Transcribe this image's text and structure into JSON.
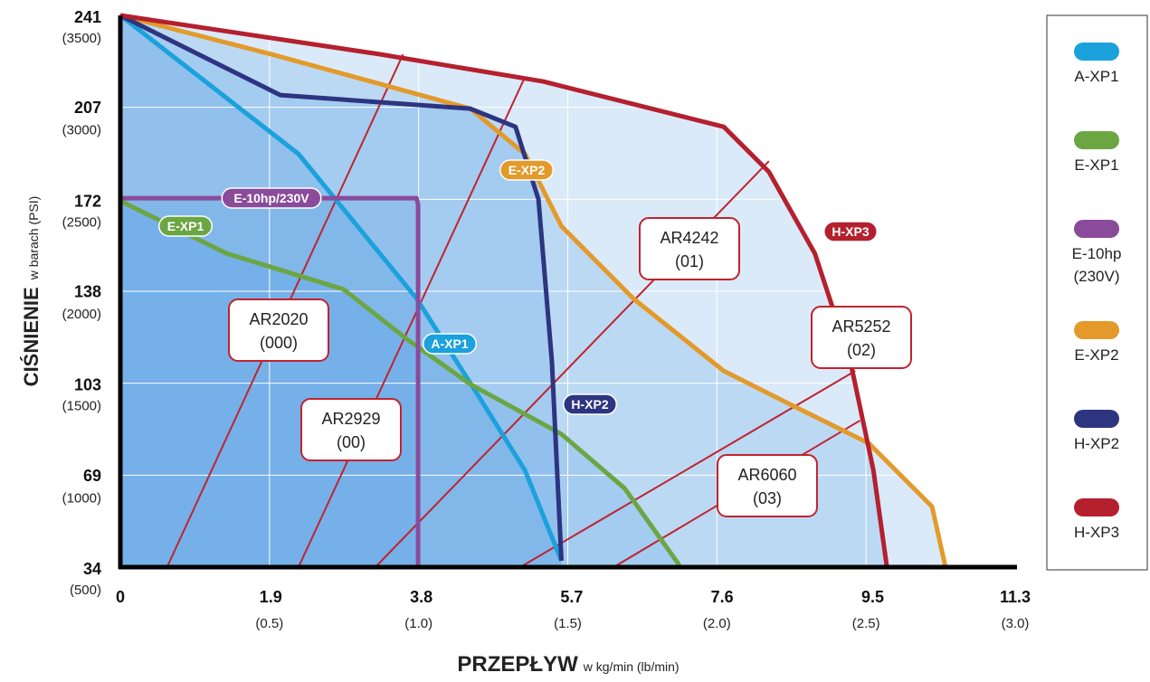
{
  "chart_data": {
    "type": "line",
    "y_title": "CIŚNIENIE",
    "y_subtitle": "w barach (PSI)",
    "x_title": "PRZEPŁYW",
    "x_subtitle": "w kg/min (lb/min)",
    "xlim": [
      0,
      11.3
    ],
    "xticks": [
      0,
      1.9,
      3.8,
      5.7,
      7.6,
      9.5,
      11.3
    ],
    "x2lim": [
      0,
      3.0
    ],
    "x2ticks": [
      {
        "value": 0.5,
        "label": "(0.5)"
      },
      {
        "value": 1.0,
        "label": "(1.0)"
      },
      {
        "value": 1.5,
        "label": "(1.5)"
      },
      {
        "value": 2.0,
        "label": "(2.0)"
      },
      {
        "value": 2.5,
        "label": "(2.5)"
      },
      {
        "value": 3.0,
        "label": "(3.0)"
      }
    ],
    "ylim": [
      34,
      241
    ],
    "yticks": [
      34,
      69,
      103,
      138,
      172,
      207,
      241
    ],
    "y2lim": [
      500,
      3500
    ],
    "y2ticks": [
      {
        "value": 500,
        "label": "(500)"
      },
      {
        "value": 1000,
        "label": "(1000)"
      },
      {
        "value": 1500,
        "label": "(1500)"
      },
      {
        "value": 2000,
        "label": "(2000)"
      },
      {
        "value": 2500,
        "label": "(2500)"
      },
      {
        "value": 3000,
        "label": "(3000)"
      },
      {
        "value": 3500,
        "label": "(3500)"
      }
    ],
    "grid": true,
    "legend": "right",
    "series": [
      {
        "name": "A-XP1",
        "label": "A-XP1",
        "color": "#1ba1dc",
        "x": [
          0,
          2.25,
          3.74,
          4.54,
          5.11,
          5.57
        ],
        "values": [
          241,
          189,
          134.8,
          97.4,
          70.3,
          36.4
        ]
      },
      {
        "name": "E-XP1",
        "label": "E-XP1",
        "color": "#6ba643",
        "x": [
          0,
          1.34,
          2.82,
          3.62,
          4.42,
          5.57,
          6.37,
          7.06
        ],
        "values": [
          171.4,
          151.7,
          138.2,
          119.5,
          102.6,
          83.9,
          63.5,
          34.7
        ]
      },
      {
        "name": "E-10hp (230V)",
        "label": "E-10hp/230V",
        "color": "#8a4b9a",
        "x": [
          0,
          3.74,
          3.76,
          3.76
        ],
        "values": [
          172.4,
          172.4,
          170,
          34
        ]
      },
      {
        "name": "E-XP2",
        "label": "E-XP2",
        "color": "#e39a2a",
        "x": [
          0,
          1.91,
          4.42,
          5.11,
          5.57,
          6.48,
          7.62,
          8.53,
          9.45,
          10.25,
          10.42
        ],
        "values": [
          241,
          226.4,
          206,
          189,
          161.9,
          134.7,
          107.6,
          94,
          80.5,
          56.7,
          34
        ]
      },
      {
        "name": "H-XP2",
        "label": "H-XP2",
        "color": "#2d3480",
        "x": [
          0,
          2.02,
          4.42,
          4.99,
          5.28,
          5.45,
          5.57
        ],
        "values": [
          241,
          211.1,
          206,
          199.2,
          172,
          111,
          36.4
        ]
      },
      {
        "name": "H-XP3",
        "label": "H-XP3",
        "color": "#b5202e",
        "x": [
          0,
          3.28,
          5.34,
          7.62,
          8.19,
          8.77,
          9.22,
          9.51,
          9.68
        ],
        "values": [
          241,
          226.4,
          216.2,
          199.2,
          182.3,
          151.7,
          111,
          70.3,
          34
        ]
      }
    ],
    "nozzle_color": "#c0232f",
    "nozzles": [
      {
        "name": "AR2020",
        "code": "(000)",
        "x": [
          0.59,
          3.57
        ],
        "values": [
          34,
          226.4
        ]
      },
      {
        "name": "AR2929",
        "code": "(00)",
        "x": [
          2.25,
          5.11
        ],
        "values": [
          34,
          217.9
        ]
      },
      {
        "name": "AR4242",
        "code": "(01)",
        "x": [
          3.22,
          8.19
        ],
        "values": [
          34,
          186.3
        ]
      },
      {
        "name": "AR5252",
        "code": "(02)",
        "x": [
          5.05,
          9.28
        ],
        "values": [
          34,
          107.6
        ]
      },
      {
        "name": "AR6060",
        "code": "(03)",
        "x": [
          6.23,
          9.34
        ],
        "values": [
          34,
          89
        ]
      }
    ]
  }
}
